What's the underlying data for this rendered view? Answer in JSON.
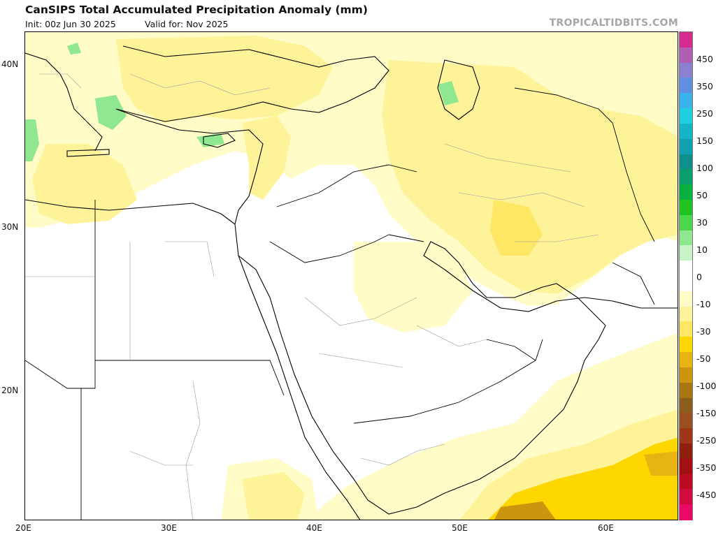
{
  "header": {
    "title": "CanSIPS Total Accumulated Precipitation Anomaly (mm)",
    "init": "Init: 00z Jun 30 2025",
    "valid": "Valid for: Nov 2025",
    "brand": "TROPICALTIDBITS.COM"
  },
  "map": {
    "lat_labels": [
      "40N",
      "30N",
      "20N"
    ],
    "lon_labels": [
      "20E",
      "30E",
      "40E",
      "50E",
      "60E"
    ]
  },
  "colorbar": {
    "labels": [
      "450",
      "350",
      "250",
      "150",
      "100",
      "50",
      "30",
      "10",
      "0",
      "-10",
      "-30",
      "-50",
      "-100",
      "-150",
      "-250",
      "-350",
      "-450"
    ],
    "colors": [
      "#d62a8f",
      "#b05fb5",
      "#8b7fd0",
      "#5f8fe0",
      "#3ab3ec",
      "#1fcfe0",
      "#16b4c9",
      "#11a0b0",
      "#0f8f8c",
      "#0a9e6e",
      "#08b040",
      "#1fc21f",
      "#4cd64c",
      "#8fe88f",
      "#c6f4c6",
      "#ffffff",
      "#ffffff",
      "#fffcc7",
      "#fff39a",
      "#ffe766",
      "#ffd700",
      "#e7b312",
      "#cc9510",
      "#a8760f",
      "#8b5e1d",
      "#9a4f21",
      "#9e3617",
      "#8e2010",
      "#a20f10",
      "#bb0c22",
      "#d00c3f",
      "#e80a66"
    ]
  }
}
